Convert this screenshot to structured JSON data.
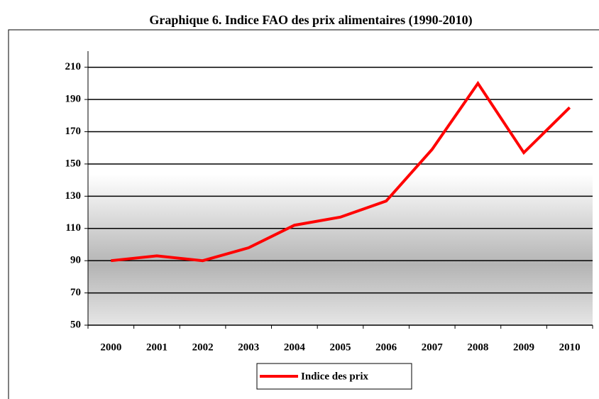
{
  "chart_data": {
    "type": "line",
    "title": "Graphique 6. Indice FAO des prix alimentaires (1990-2010)",
    "categories": [
      "2000",
      "2001",
      "2002",
      "2003",
      "2004",
      "2005",
      "2006",
      "2007",
      "2008",
      "2009",
      "2010"
    ],
    "series": [
      {
        "name": "Indice des prix",
        "color": "#ff0000",
        "values": [
          90,
          93,
          90,
          98,
          112,
          117,
          127,
          159,
          200,
          157,
          185
        ]
      }
    ],
    "ylim": [
      50,
      220
    ],
    "yticks": [
      50,
      70,
      90,
      110,
      130,
      150,
      170,
      190,
      210
    ],
    "grid": true,
    "legend": "bottom"
  }
}
